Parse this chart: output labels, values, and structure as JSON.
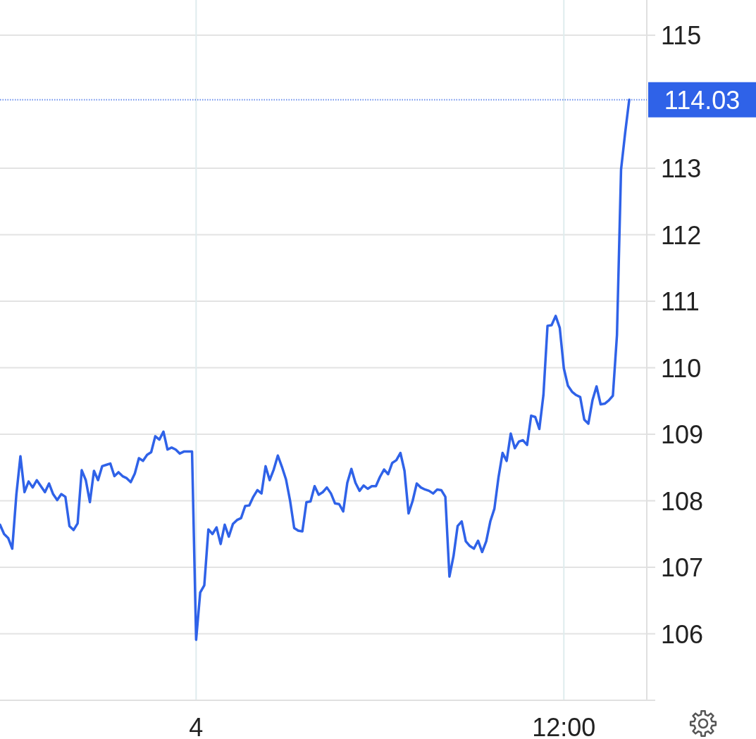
{
  "chart_data": {
    "type": "line",
    "categories": [
      null,
      null,
      null,
      null,
      null,
      null,
      null,
      null,
      null,
      null,
      null,
      null,
      null,
      null,
      null,
      null,
      null,
      null,
      null,
      null,
      null,
      null,
      null,
      null,
      null,
      null,
      null,
      null,
      null,
      null,
      null,
      null,
      null,
      null,
      null,
      null,
      null,
      null,
      null,
      null,
      null,
      null,
      null,
      null,
      null,
      null,
      null,
      null,
      "4",
      null,
      null,
      null,
      null,
      null,
      null,
      null,
      null,
      null,
      null,
      null,
      null,
      null,
      null,
      null,
      null,
      null,
      null,
      null,
      null,
      null,
      null,
      null,
      null,
      null,
      null,
      null,
      null,
      null,
      null,
      null,
      null,
      null,
      null,
      null,
      null,
      null,
      null,
      null,
      null,
      null,
      null,
      null,
      null,
      null,
      null,
      null,
      null,
      null,
      null,
      null,
      null,
      null,
      null,
      null,
      null,
      null,
      null,
      null,
      null,
      null,
      null,
      null,
      null,
      null,
      null,
      null,
      null,
      null,
      null,
      null,
      null,
      null,
      null,
      null,
      null,
      null,
      null,
      null,
      null,
      null,
      null,
      null,
      null,
      null,
      null,
      null,
      null,
      null,
      "12:00",
      null,
      null,
      null,
      null,
      null,
      null,
      null,
      null,
      null,
      null,
      null,
      null,
      null,
      null,
      null,
      null
    ],
    "series": [
      {
        "color": "#2f62e8",
        "values": [
          107.64,
          107.5,
          107.44,
          107.28,
          108.09,
          108.67,
          108.13,
          108.29,
          108.2,
          108.31,
          108.22,
          108.13,
          108.26,
          108.1,
          108.01,
          108.1,
          108.06,
          107.62,
          107.56,
          107.66,
          108.46,
          108.31,
          107.98,
          108.45,
          108.31,
          108.52,
          108.54,
          108.56,
          108.37,
          108.43,
          108.37,
          108.34,
          108.28,
          108.41,
          108.64,
          108.6,
          108.69,
          108.73,
          108.97,
          108.92,
          109.04,
          108.77,
          108.8,
          108.77,
          108.71,
          108.74,
          108.74,
          108.74,
          105.91,
          106.62,
          106.73,
          107.57,
          107.5,
          107.6,
          107.35,
          107.64,
          107.46,
          107.65,
          107.71,
          107.74,
          107.92,
          107.93,
          108.06,
          108.16,
          108.11,
          108.52,
          108.31,
          108.47,
          108.68,
          108.51,
          108.32,
          108.0,
          107.59,
          107.55,
          107.54,
          107.98,
          107.99,
          108.22,
          108.09,
          108.13,
          108.2,
          108.11,
          107.96,
          107.95,
          107.84,
          108.27,
          108.48,
          108.27,
          108.15,
          108.23,
          108.18,
          108.22,
          108.22,
          108.36,
          108.47,
          108.4,
          108.57,
          108.61,
          108.72,
          108.45,
          107.81,
          108.0,
          108.26,
          108.2,
          108.17,
          108.15,
          108.11,
          108.17,
          108.16,
          108.06,
          106.86,
          107.17,
          107.62,
          107.69,
          107.39,
          107.32,
          107.28,
          107.4,
          107.23,
          107.39,
          107.69,
          107.88,
          108.35,
          108.72,
          108.6,
          109.01,
          108.79,
          108.89,
          108.91,
          108.84,
          109.28,
          109.26,
          109.08,
          109.59,
          110.63,
          110.64,
          110.78,
          110.6,
          109.99,
          109.73,
          109.64,
          109.59,
          109.56,
          109.22,
          109.16,
          109.51,
          109.72,
          109.45,
          109.46,
          109.51,
          109.58,
          110.49,
          112.98,
          113.53,
          114.03
        ]
      }
    ],
    "ylim": [
      105,
      115.53
    ],
    "yticks": [
      106,
      107,
      108,
      109,
      110,
      111,
      112,
      113,
      115
    ],
    "grid": true,
    "ref_lines": [
      {
        "axis": "y",
        "value": 114.03,
        "label": "114.03",
        "color": "#2f62e8",
        "line_style": "dotted"
      }
    ]
  }
}
